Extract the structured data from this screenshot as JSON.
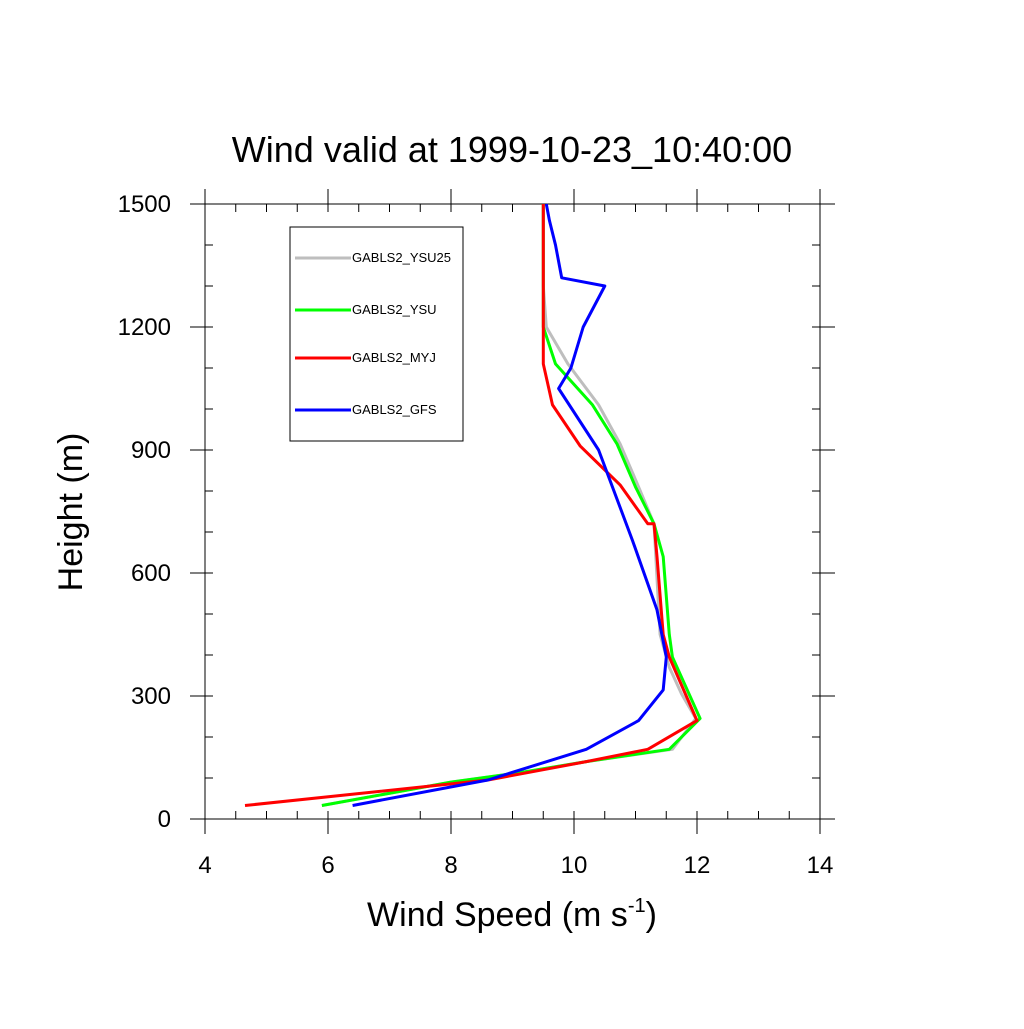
{
  "chart_data": {
    "type": "line",
    "title": "Wind valid at 1999-10-23_10:40:00",
    "xlabel": "Wind Speed (m s",
    "xlabel_sup": "-1",
    "xlabel_end": ")",
    "ylabel": "Height (m)",
    "xlim": [
      4,
      14
    ],
    "ylim": [
      0,
      1500
    ],
    "x_major_ticks": [
      4,
      6,
      8,
      10,
      12,
      14
    ],
    "x_minor_step": 0.5,
    "y_major_ticks": [
      0,
      300,
      600,
      900,
      1200,
      1500
    ],
    "y_minor_step": 100,
    "legend_position": "top-left",
    "grid": false,
    "series": [
      {
        "name": "GABLS2_YSU25",
        "color": "#bebebe",
        "x": [
          5.9,
          6.9,
          8.0,
          9.2,
          10.2,
          11.6,
          11.98,
          11.75,
          11.55,
          11.4,
          11.3,
          11.05,
          10.75,
          10.4,
          9.9,
          9.55,
          9.5,
          9.5
        ],
        "y": [
          33,
          60,
          90,
          115,
          140,
          170,
          245,
          305,
          370,
          450,
          720,
          810,
          915,
          1010,
          1110,
          1200,
          1300,
          1500
        ]
      },
      {
        "name": "GABLS2_YSU",
        "color": "#00ff00",
        "x": [
          5.9,
          6.9,
          8.0,
          9.2,
          10.2,
          11.55,
          12.05,
          11.6,
          11.55,
          11.45,
          11.3,
          11.0,
          10.7,
          10.3,
          9.7,
          9.5,
          9.5,
          9.5
        ],
        "y": [
          33,
          60,
          90,
          115,
          140,
          170,
          245,
          395,
          450,
          640,
          720,
          810,
          915,
          1010,
          1110,
          1200,
          1300,
          1500
        ]
      },
      {
        "name": "GABLS2_MYJ",
        "color": "#ff0000",
        "x": [
          4.65,
          8.6,
          10.2,
          11.2,
          12.0,
          11.55,
          11.45,
          11.35,
          11.3,
          11.2,
          10.75,
          10.1,
          9.65,
          9.5,
          9.5,
          9.5
        ],
        "y": [
          33,
          95,
          140,
          170,
          240,
          395,
          450,
          640,
          720,
          720,
          815,
          910,
          1010,
          1110,
          1300,
          1500
        ]
      },
      {
        "name": "GABLS2_GFS",
        "color": "#0000ff",
        "x": [
          6.4,
          8.6,
          10.2,
          11.05,
          11.45,
          11.5,
          11.35,
          10.95,
          10.4,
          9.75,
          9.95,
          10.15,
          10.5,
          9.8,
          9.7,
          9.6,
          9.55
        ],
        "y": [
          33,
          95,
          170,
          240,
          315,
          395,
          510,
          680,
          900,
          1050,
          1100,
          1200,
          1300,
          1320,
          1400,
          1460,
          1500
        ]
      }
    ]
  }
}
